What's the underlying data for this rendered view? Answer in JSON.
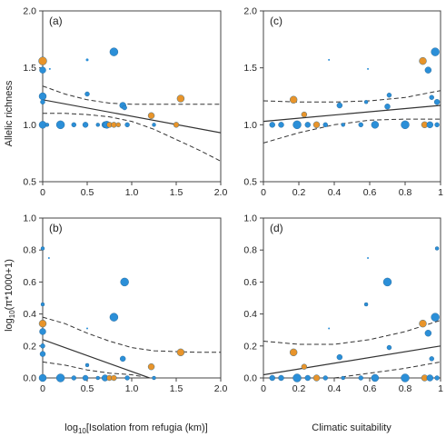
{
  "figure": {
    "y_label_top": "Allelic richness",
    "y_label_bottom_main": "log",
    "y_label_bottom_sub": "10",
    "y_label_bottom_rest": "(π*1000+1)",
    "x_label_left_main": "log",
    "x_label_left_sub": "10",
    "x_label_left_rest": "[Isolation from refugia (km)]",
    "x_label_right": "Climatic suitability"
  },
  "colors": {
    "blue": "#2b8fd8",
    "orange": "#e8942a",
    "line": "#333333",
    "axis": "#444444"
  },
  "chart_data": [
    {
      "type": "scatter",
      "panel": "(a)",
      "xlim": [
        0,
        2
      ],
      "ylim": [
        0.5,
        2
      ],
      "xticks": [
        "0",
        "0.5",
        "1.0",
        "1.5",
        "2.0"
      ],
      "yticks": [
        "0.5",
        "1.0",
        "1.5",
        "2.0"
      ],
      "xtick_values": [
        0,
        0.5,
        1,
        1.5,
        2
      ],
      "ytick_values": [
        0.5,
        1,
        1.5,
        2
      ],
      "show_xtick_labels": true,
      "show_ytick_labels": true,
      "fit": {
        "x": [
          0,
          2
        ],
        "y": [
          1.22,
          0.93
        ]
      },
      "ci_upper": {
        "x": [
          0,
          0.25,
          0.5,
          0.75,
          1.0,
          1.25,
          1.5,
          1.75,
          2.0
        ],
        "y": [
          1.34,
          1.27,
          1.22,
          1.19,
          1.18,
          1.18,
          1.18,
          1.18,
          1.18
        ]
      },
      "ci_lower": {
        "x": [
          0,
          0.25,
          0.5,
          0.75,
          1.0,
          1.25,
          1.5,
          1.75,
          2.0
        ],
        "y": [
          1.1,
          1.1,
          1.09,
          1.07,
          1.03,
          0.96,
          0.87,
          0.78,
          0.68
        ]
      },
      "points": [
        {
          "x": 0.0,
          "y": 1.56,
          "r": 4.5,
          "c": "orange"
        },
        {
          "x": 0.0,
          "y": 1.48,
          "r": 3.5,
          "c": "blue"
        },
        {
          "x": 0.0,
          "y": 1.25,
          "r": 4,
          "c": "blue"
        },
        {
          "x": 0.0,
          "y": 1.2,
          "r": 2.5,
          "c": "blue"
        },
        {
          "x": 0.0,
          "y": 1.0,
          "r": 4,
          "c": "blue"
        },
        {
          "x": 0.05,
          "y": 1.0,
          "r": 2,
          "c": "blue"
        },
        {
          "x": 0.08,
          "y": 1.49,
          "r": 1,
          "c": "blue"
        },
        {
          "x": 0.2,
          "y": 1.0,
          "r": 4.5,
          "c": "blue"
        },
        {
          "x": 0.35,
          "y": 1.0,
          "r": 2.5,
          "c": "blue"
        },
        {
          "x": 0.48,
          "y": 1.0,
          "r": 3,
          "c": "blue"
        },
        {
          "x": 0.5,
          "y": 1.27,
          "r": 2.5,
          "c": "blue"
        },
        {
          "x": 0.5,
          "y": 1.57,
          "r": 1.5,
          "c": "blue"
        },
        {
          "x": 0.62,
          "y": 1.0,
          "r": 2,
          "c": "blue"
        },
        {
          "x": 0.7,
          "y": 1.0,
          "r": 3.5,
          "c": "blue"
        },
        {
          "x": 0.72,
          "y": 1.0,
          "r": 4,
          "c": "blue"
        },
        {
          "x": 0.75,
          "y": 1.0,
          "r": 3,
          "c": "orange"
        },
        {
          "x": 0.8,
          "y": 1.64,
          "r": 4.5,
          "c": "blue"
        },
        {
          "x": 0.8,
          "y": 1.0,
          "r": 3,
          "c": "orange"
        },
        {
          "x": 0.85,
          "y": 1.0,
          "r": 2.5,
          "c": "orange"
        },
        {
          "x": 0.9,
          "y": 1.17,
          "r": 3.5,
          "c": "blue"
        },
        {
          "x": 0.92,
          "y": 1.15,
          "r": 2.5,
          "c": "blue"
        },
        {
          "x": 0.95,
          "y": 1.0,
          "r": 2.5,
          "c": "blue"
        },
        {
          "x": 1.22,
          "y": 1.08,
          "r": 3.5,
          "c": "orange"
        },
        {
          "x": 1.25,
          "y": 1.0,
          "r": 2,
          "c": "blue"
        },
        {
          "x": 1.5,
          "y": 1.0,
          "r": 3,
          "c": "orange"
        },
        {
          "x": 1.55,
          "y": 1.23,
          "r": 4,
          "c": "orange"
        }
      ]
    },
    {
      "type": "scatter",
      "panel": "(c)",
      "xlim": [
        0,
        1
      ],
      "ylim": [
        0.5,
        2
      ],
      "xticks": [
        "0",
        "0.2",
        "0.4",
        "0.6",
        "0.8",
        "1"
      ],
      "yticks": [
        "0.5",
        "1.0",
        "1.5",
        "2.0"
      ],
      "xtick_values": [
        0,
        0.2,
        0.4,
        0.6,
        0.8,
        1
      ],
      "ytick_values": [
        0.5,
        1,
        1.5,
        2
      ],
      "show_xtick_labels": true,
      "show_ytick_labels": true,
      "fit": {
        "x": [
          0,
          1
        ],
        "y": [
          1.03,
          1.17
        ]
      },
      "ci_upper": {
        "x": [
          0,
          0.2,
          0.4,
          0.6,
          0.8,
          1.0
        ],
        "y": [
          1.21,
          1.2,
          1.2,
          1.21,
          1.24,
          1.3
        ]
      },
      "ci_lower": {
        "x": [
          0,
          0.2,
          0.4,
          0.6,
          0.8,
          1.0
        ],
        "y": [
          0.84,
          0.93,
          1.0,
          1.04,
          1.05,
          1.05
        ]
      },
      "points": [
        {
          "x": 0.05,
          "y": 1.0,
          "r": 3,
          "c": "blue"
        },
        {
          "x": 0.1,
          "y": 1.0,
          "r": 3,
          "c": "blue"
        },
        {
          "x": 0.17,
          "y": 1.22,
          "r": 4,
          "c": "orange"
        },
        {
          "x": 0.19,
          "y": 1.0,
          "r": 4.5,
          "c": "blue"
        },
        {
          "x": 0.23,
          "y": 1.09,
          "r": 3,
          "c": "orange"
        },
        {
          "x": 0.25,
          "y": 1.0,
          "r": 3,
          "c": "blue"
        },
        {
          "x": 0.3,
          "y": 1.0,
          "r": 3.5,
          "c": "orange"
        },
        {
          "x": 0.35,
          "y": 1.0,
          "r": 2.5,
          "c": "blue"
        },
        {
          "x": 0.37,
          "y": 1.57,
          "r": 1,
          "c": "blue"
        },
        {
          "x": 0.43,
          "y": 1.17,
          "r": 3,
          "c": "blue"
        },
        {
          "x": 0.45,
          "y": 1.0,
          "r": 2,
          "c": "blue"
        },
        {
          "x": 0.55,
          "y": 1.0,
          "r": 2.5,
          "c": "blue"
        },
        {
          "x": 0.58,
          "y": 1.2,
          "r": 2,
          "c": "blue"
        },
        {
          "x": 0.59,
          "y": 1.49,
          "r": 1,
          "c": "blue"
        },
        {
          "x": 0.63,
          "y": 1.0,
          "r": 4,
          "c": "blue"
        },
        {
          "x": 0.7,
          "y": 1.16,
          "r": 3,
          "c": "blue"
        },
        {
          "x": 0.71,
          "y": 1.26,
          "r": 2.5,
          "c": "blue"
        },
        {
          "x": 0.8,
          "y": 1.0,
          "r": 4.5,
          "c": "blue"
        },
        {
          "x": 0.9,
          "y": 1.56,
          "r": 4,
          "c": "orange"
        },
        {
          "x": 0.91,
          "y": 1.0,
          "r": 3.5,
          "c": "orange"
        },
        {
          "x": 0.93,
          "y": 1.48,
          "r": 3.5,
          "c": "blue"
        },
        {
          "x": 0.94,
          "y": 1.0,
          "r": 3.5,
          "c": "blue"
        },
        {
          "x": 0.95,
          "y": 1.24,
          "r": 2.5,
          "c": "blue"
        },
        {
          "x": 0.97,
          "y": 1.64,
          "r": 4.5,
          "c": "blue"
        },
        {
          "x": 0.98,
          "y": 1.2,
          "r": 3,
          "c": "blue"
        },
        {
          "x": 0.98,
          "y": 1.0,
          "r": 2.5,
          "c": "blue"
        }
      ]
    },
    {
      "type": "scatter",
      "panel": "(b)",
      "xlim": [
        0,
        2
      ],
      "ylim": [
        0,
        1
      ],
      "xticks": [
        "0",
        "0.5",
        "1.0",
        "1.5",
        "2.0"
      ],
      "yticks": [
        "0.0",
        "0.2",
        "0.4",
        "0.6",
        "0.8",
        "1.0"
      ],
      "xtick_values": [
        0,
        0.5,
        1,
        1.5,
        2
      ],
      "ytick_values": [
        0,
        0.2,
        0.4,
        0.6,
        0.8,
        1
      ],
      "show_xtick_labels": true,
      "show_ytick_labels": true,
      "fit": {
        "x": [
          0,
          1.2
        ],
        "y": [
          0.24,
          0.0
        ]
      },
      "ci_upper": {
        "x": [
          0,
          0.25,
          0.5,
          0.75,
          1.0,
          1.25,
          1.5,
          1.75,
          2.0
        ],
        "y": [
          0.38,
          0.34,
          0.28,
          0.23,
          0.19,
          0.17,
          0.165,
          0.16,
          0.16
        ]
      },
      "ci_lower": {
        "x": [
          0,
          0.25,
          0.5,
          0.75,
          1.0,
          1.1
        ],
        "y": [
          0.1,
          0.08,
          0.05,
          0.03,
          0.02,
          0.01
        ]
      },
      "points": [
        {
          "x": 0.0,
          "y": 0.81,
          "r": 2,
          "c": "blue"
        },
        {
          "x": 0.0,
          "y": 0.46,
          "r": 2,
          "c": "blue"
        },
        {
          "x": 0.0,
          "y": 0.34,
          "r": 4,
          "c": "orange"
        },
        {
          "x": 0.0,
          "y": 0.29,
          "r": 3.5,
          "c": "blue"
        },
        {
          "x": 0.0,
          "y": 0.2,
          "r": 2.5,
          "c": "blue"
        },
        {
          "x": 0.0,
          "y": 0.15,
          "r": 3,
          "c": "blue"
        },
        {
          "x": 0.0,
          "y": 0.0,
          "r": 4,
          "c": "blue"
        },
        {
          "x": 0.07,
          "y": 0.75,
          "r": 1,
          "c": "blue"
        },
        {
          "x": 0.2,
          "y": 0.0,
          "r": 4.5,
          "c": "blue"
        },
        {
          "x": 0.35,
          "y": 0.0,
          "r": 2.5,
          "c": "blue"
        },
        {
          "x": 0.48,
          "y": 0.0,
          "r": 3,
          "c": "blue"
        },
        {
          "x": 0.5,
          "y": 0.31,
          "r": 1,
          "c": "blue"
        },
        {
          "x": 0.5,
          "y": 0.08,
          "r": 2,
          "c": "blue"
        },
        {
          "x": 0.62,
          "y": 0.0,
          "r": 2,
          "c": "blue"
        },
        {
          "x": 0.7,
          "y": 0.0,
          "r": 3.5,
          "c": "blue"
        },
        {
          "x": 0.75,
          "y": 0.0,
          "r": 3,
          "c": "orange"
        },
        {
          "x": 0.8,
          "y": 0.38,
          "r": 4.5,
          "c": "blue"
        },
        {
          "x": 0.8,
          "y": 0.0,
          "r": 3,
          "c": "orange"
        },
        {
          "x": 0.9,
          "y": 0.12,
          "r": 3,
          "c": "blue"
        },
        {
          "x": 0.92,
          "y": 0.6,
          "r": 4.5,
          "c": "blue"
        },
        {
          "x": 0.95,
          "y": 0.0,
          "r": 2.5,
          "c": "blue"
        },
        {
          "x": 1.22,
          "y": 0.07,
          "r": 3.5,
          "c": "orange"
        },
        {
          "x": 1.25,
          "y": 0.0,
          "r": 2,
          "c": "blue"
        },
        {
          "x": 1.55,
          "y": 0.16,
          "r": 4,
          "c": "orange"
        }
      ]
    },
    {
      "type": "scatter",
      "panel": "(d)",
      "xlim": [
        0,
        1
      ],
      "ylim": [
        0,
        1
      ],
      "xticks": [
        "0",
        "0.2",
        "0.4",
        "0.6",
        "0.8",
        "1"
      ],
      "yticks": [
        "0.0",
        "0.2",
        "0.4",
        "0.6",
        "0.8",
        "1.0"
      ],
      "xtick_values": [
        0,
        0.2,
        0.4,
        0.6,
        0.8,
        1
      ],
      "ytick_values": [
        0,
        0.2,
        0.4,
        0.6,
        0.8,
        1
      ],
      "show_xtick_labels": true,
      "show_ytick_labels": true,
      "fit": {
        "x": [
          0,
          1
        ],
        "y": [
          0.02,
          0.2
        ]
      },
      "ci_upper": {
        "x": [
          0,
          0.2,
          0.4,
          0.6,
          0.8,
          1.0
        ],
        "y": [
          0.23,
          0.21,
          0.21,
          0.24,
          0.29,
          0.36
        ]
      },
      "ci_lower": {
        "x": [
          0.4,
          0.5,
          0.6,
          0.7,
          0.8,
          0.9,
          1.0
        ],
        "y": [
          0.0,
          0.015,
          0.03,
          0.045,
          0.06,
          0.08,
          0.1
        ]
      },
      "points": [
        {
          "x": 0.05,
          "y": 0.0,
          "r": 3,
          "c": "blue"
        },
        {
          "x": 0.1,
          "y": 0.0,
          "r": 3,
          "c": "blue"
        },
        {
          "x": 0.17,
          "y": 0.16,
          "r": 4,
          "c": "orange"
        },
        {
          "x": 0.19,
          "y": 0.0,
          "r": 4.5,
          "c": "blue"
        },
        {
          "x": 0.23,
          "y": 0.07,
          "r": 3,
          "c": "orange"
        },
        {
          "x": 0.25,
          "y": 0.0,
          "r": 3,
          "c": "blue"
        },
        {
          "x": 0.3,
          "y": 0.0,
          "r": 3.5,
          "c": "orange"
        },
        {
          "x": 0.35,
          "y": 0.0,
          "r": 2.5,
          "c": "blue"
        },
        {
          "x": 0.37,
          "y": 0.31,
          "r": 1,
          "c": "blue"
        },
        {
          "x": 0.43,
          "y": 0.13,
          "r": 3,
          "c": "blue"
        },
        {
          "x": 0.45,
          "y": 0.0,
          "r": 2,
          "c": "blue"
        },
        {
          "x": 0.55,
          "y": 0.0,
          "r": 2.5,
          "c": "blue"
        },
        {
          "x": 0.58,
          "y": 0.46,
          "r": 2,
          "c": "blue"
        },
        {
          "x": 0.59,
          "y": 0.75,
          "r": 1,
          "c": "blue"
        },
        {
          "x": 0.63,
          "y": 0.0,
          "r": 4,
          "c": "blue"
        },
        {
          "x": 0.7,
          "y": 0.6,
          "r": 4.5,
          "c": "blue"
        },
        {
          "x": 0.71,
          "y": 0.19,
          "r": 2.5,
          "c": "blue"
        },
        {
          "x": 0.8,
          "y": 0.0,
          "r": 4.5,
          "c": "blue"
        },
        {
          "x": 0.9,
          "y": 0.34,
          "r": 4,
          "c": "orange"
        },
        {
          "x": 0.91,
          "y": 0.0,
          "r": 3.5,
          "c": "orange"
        },
        {
          "x": 0.93,
          "y": 0.28,
          "r": 3.5,
          "c": "blue"
        },
        {
          "x": 0.94,
          "y": 0.0,
          "r": 3.5,
          "c": "blue"
        },
        {
          "x": 0.95,
          "y": 0.12,
          "r": 2.5,
          "c": "blue"
        },
        {
          "x": 0.97,
          "y": 0.38,
          "r": 4.5,
          "c": "blue"
        },
        {
          "x": 0.98,
          "y": 0.81,
          "r": 2,
          "c": "blue"
        },
        {
          "x": 0.98,
          "y": 0.0,
          "r": 2.5,
          "c": "blue"
        }
      ]
    }
  ]
}
